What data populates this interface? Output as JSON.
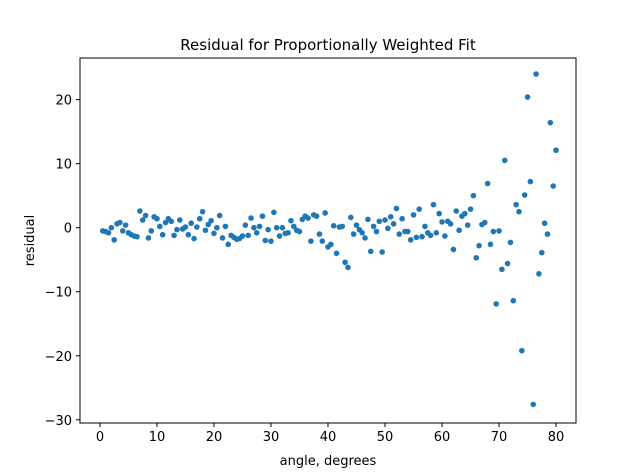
{
  "chart_data": {
    "type": "scatter",
    "title": "Residual for Proportionally Weighted Fit",
    "xlabel": "angle, degrees",
    "ylabel": "residual",
    "xlim": [
      -3.5,
      83.5
    ],
    "ylim": [
      -30.5,
      26.5
    ],
    "xticks": [
      0,
      10,
      20,
      30,
      40,
      50,
      60,
      70,
      80
    ],
    "yticks": [
      -30,
      -20,
      -10,
      0,
      10,
      20
    ],
    "grid": false,
    "legend": "none",
    "marker_color": "#1f77b4",
    "series": [
      {
        "points": [
          [
            0.5,
            -0.5
          ],
          [
            1.0,
            -0.6
          ],
          [
            1.5,
            -0.8
          ],
          [
            2.0,
            0.0
          ],
          [
            2.5,
            -1.9
          ],
          [
            3.0,
            0.6
          ],
          [
            3.5,
            0.8
          ],
          [
            4.0,
            -0.5
          ],
          [
            4.5,
            0.4
          ],
          [
            5.0,
            -0.8
          ],
          [
            5.5,
            -1.1
          ],
          [
            6.0,
            -1.3
          ],
          [
            6.5,
            -1.4
          ],
          [
            7.0,
            2.6
          ],
          [
            7.5,
            1.2
          ],
          [
            8.0,
            1.9
          ],
          [
            8.5,
            -1.6
          ],
          [
            9.0,
            -0.5
          ],
          [
            9.5,
            1.7
          ],
          [
            10.0,
            1.4
          ],
          [
            10.5,
            0.2
          ],
          [
            11.0,
            -1.1
          ],
          [
            11.5,
            0.8
          ],
          [
            12.0,
            1.4
          ],
          [
            12.5,
            1.0
          ],
          [
            13.0,
            -1.2
          ],
          [
            13.5,
            -0.3
          ],
          [
            14.0,
            1.2
          ],
          [
            14.5,
            -0.2
          ],
          [
            15.0,
            0.1
          ],
          [
            15.5,
            -1.1
          ],
          [
            16.0,
            0.7
          ],
          [
            16.5,
            -1.7
          ],
          [
            17.0,
            0.1
          ],
          [
            17.5,
            1.4
          ],
          [
            18.0,
            2.5
          ],
          [
            18.5,
            -0.4
          ],
          [
            19.0,
            0.5
          ],
          [
            19.5,
            1.1
          ],
          [
            20.0,
            -0.9
          ],
          [
            20.5,
            0.0
          ],
          [
            21.0,
            1.9
          ],
          [
            21.5,
            -1.6
          ],
          [
            22.0,
            0.2
          ],
          [
            22.5,
            -2.6
          ],
          [
            23.0,
            -1.2
          ],
          [
            23.5,
            -1.5
          ],
          [
            24.0,
            -1.8
          ],
          [
            24.5,
            -1.7
          ],
          [
            25.0,
            -1.3
          ],
          [
            25.5,
            0.4
          ],
          [
            26.0,
            -1.2
          ],
          [
            26.5,
            1.5
          ],
          [
            27.0,
            0.0
          ],
          [
            27.5,
            -0.8
          ],
          [
            28.0,
            0.2
          ],
          [
            28.5,
            1.8
          ],
          [
            29.0,
            -2.0
          ],
          [
            29.5,
            -0.3
          ],
          [
            30.0,
            -2.1
          ],
          [
            30.5,
            2.4
          ],
          [
            31.0,
            0.0
          ],
          [
            31.5,
            -1.3
          ],
          [
            32.0,
            0.0
          ],
          [
            32.5,
            -0.9
          ],
          [
            33.0,
            -0.8
          ],
          [
            33.5,
            1.1
          ],
          [
            34.0,
            0.2
          ],
          [
            34.5,
            -0.4
          ],
          [
            35.0,
            -0.6
          ],
          [
            35.5,
            1.3
          ],
          [
            36.0,
            1.8
          ],
          [
            36.5,
            1.5
          ],
          [
            37.0,
            -2.1
          ],
          [
            37.5,
            2.0
          ],
          [
            38.0,
            1.8
          ],
          [
            38.5,
            -1.0
          ],
          [
            39.0,
            -2.1
          ],
          [
            39.5,
            2.3
          ],
          [
            40.0,
            -3.0
          ],
          [
            40.5,
            -2.6
          ],
          [
            41.0,
            0.3
          ],
          [
            41.5,
            -4.0
          ],
          [
            42.0,
            0.1
          ],
          [
            42.5,
            0.2
          ],
          [
            43.0,
            -5.4
          ],
          [
            43.5,
            -6.2
          ],
          [
            44.0,
            1.6
          ],
          [
            44.5,
            -1.0
          ],
          [
            45.0,
            0.4
          ],
          [
            45.5,
            -0.3
          ],
          [
            46.0,
            -0.8
          ],
          [
            46.5,
            -1.6
          ],
          [
            47.0,
            1.3
          ],
          [
            47.5,
            -3.7
          ],
          [
            48.0,
            0.2
          ],
          [
            48.5,
            -0.6
          ],
          [
            49.0,
            1.0
          ],
          [
            49.5,
            -3.8
          ],
          [
            50.0,
            1.2
          ],
          [
            50.5,
            -0.1
          ],
          [
            51.0,
            1.7
          ],
          [
            51.5,
            0.6
          ],
          [
            52.0,
            3.0
          ],
          [
            52.5,
            -1.0
          ],
          [
            53.0,
            1.4
          ],
          [
            53.5,
            -0.6
          ],
          [
            54.0,
            -0.6
          ],
          [
            54.5,
            -1.9
          ],
          [
            55.0,
            2.0
          ],
          [
            55.5,
            -1.5
          ],
          [
            56.0,
            2.9
          ],
          [
            56.5,
            -1.4
          ],
          [
            57.0,
            0.2
          ],
          [
            57.5,
            -0.8
          ],
          [
            58.0,
            -1.2
          ],
          [
            58.5,
            3.6
          ],
          [
            59.0,
            -0.8
          ],
          [
            59.5,
            2.2
          ],
          [
            60.0,
            0.9
          ],
          [
            60.5,
            -1.3
          ],
          [
            61.0,
            1.0
          ],
          [
            61.5,
            0.6
          ],
          [
            62.0,
            -3.4
          ],
          [
            62.5,
            2.6
          ],
          [
            63.0,
            -0.4
          ],
          [
            63.5,
            1.8
          ],
          [
            64.0,
            2.2
          ],
          [
            64.5,
            0.4
          ],
          [
            65.0,
            2.9
          ],
          [
            65.5,
            5.0
          ],
          [
            66.0,
            -4.7
          ],
          [
            66.5,
            -2.8
          ],
          [
            67.0,
            0.5
          ],
          [
            67.5,
            0.8
          ],
          [
            68.0,
            6.9
          ],
          [
            68.5,
            -2.6
          ],
          [
            69.0,
            -0.6
          ],
          [
            69.5,
            -11.9
          ],
          [
            70.0,
            -0.5
          ],
          [
            70.5,
            -6.5
          ],
          [
            71.0,
            10.5
          ],
          [
            71.5,
            -5.6
          ],
          [
            72.0,
            -2.3
          ],
          [
            72.5,
            -11.4
          ],
          [
            73.0,
            3.6
          ],
          [
            73.5,
            2.5
          ],
          [
            74.0,
            -19.2
          ],
          [
            74.5,
            5.1
          ],
          [
            75.0,
            20.4
          ],
          [
            75.5,
            7.2
          ],
          [
            76.0,
            -27.6
          ],
          [
            76.5,
            24.0
          ],
          [
            77.0,
            -7.2
          ],
          [
            77.5,
            -3.9
          ],
          [
            78.0,
            0.7
          ],
          [
            78.5,
            -1.0
          ],
          [
            79.0,
            16.4
          ],
          [
            79.5,
            6.5
          ],
          [
            80.0,
            12.1
          ]
        ]
      }
    ]
  }
}
